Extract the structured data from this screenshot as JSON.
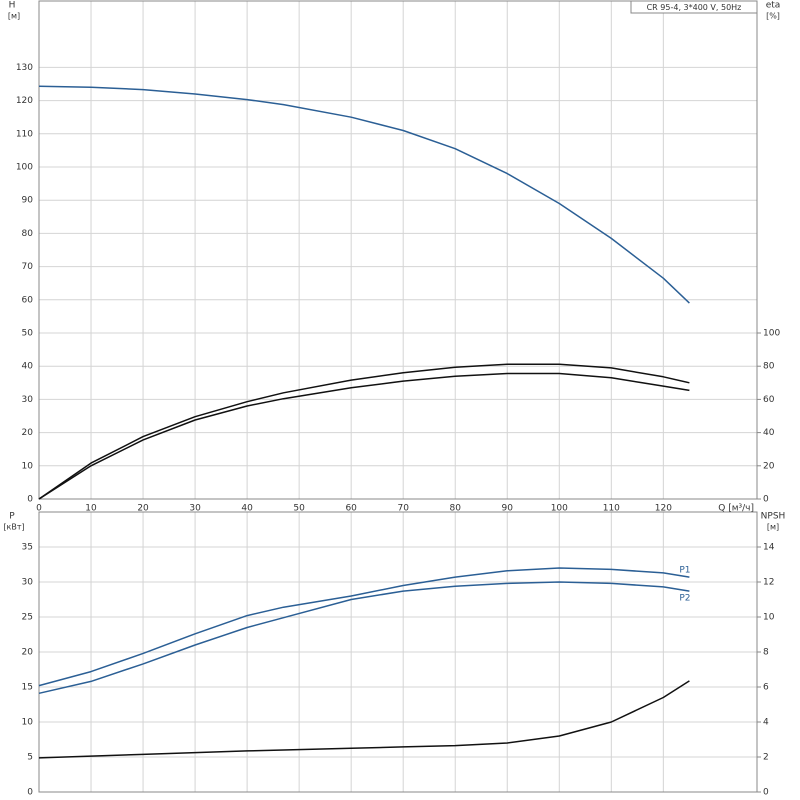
{
  "chart_data": [
    {
      "type": "line",
      "annotation": "CR 95-4, 3*400 V, 50Hz",
      "y_label": "H",
      "y_unit": "[м]",
      "y2_label": "eta",
      "y2_unit": "[%]",
      "x_label": "Q [м³/ч]",
      "xlim": [
        0,
        138
      ],
      "xticks": [
        0,
        10,
        20,
        30,
        40,
        50,
        60,
        70,
        80,
        90,
        100,
        110,
        120
      ],
      "ylim": [
        0,
        150
      ],
      "yticks": [
        0,
        10,
        20,
        30,
        40,
        50,
        60,
        70,
        80,
        90,
        100,
        110,
        120,
        130
      ],
      "y2lim": [
        0,
        300
      ],
      "y2ticks": [
        0,
        20,
        40,
        60,
        80,
        100
      ],
      "grid": true,
      "x": [
        0,
        10,
        20,
        30,
        40,
        47,
        60,
        70,
        80,
        90,
        100,
        110,
        120,
        125
      ],
      "series": [
        {
          "color": "#2b5f95",
          "values": [
            124.3,
            124,
            123.3,
            122,
            120.3,
            118.8,
            115,
            111,
            105.5,
            98,
            89,
            78.5,
            66.5,
            59
          ]
        },
        {
          "color": "#111111",
          "axis": "y2",
          "values": [
            0,
            21.6,
            37.6,
            49.6,
            58.6,
            64,
            71.6,
            76,
            79.4,
            81.2,
            81.2,
            79,
            73.6,
            70
          ]
        },
        {
          "color": "#111111",
          "axis": "y2",
          "values": [
            0,
            20,
            35.6,
            47.6,
            56,
            60.4,
            67,
            71,
            74,
            75.6,
            75.6,
            73,
            68,
            65.4
          ]
        }
      ]
    },
    {
      "type": "line",
      "y_label": "P",
      "y_unit": "[кВт]",
      "y2_label": "NPSH",
      "y2_unit": "[м]",
      "xlim": [
        0,
        138
      ],
      "ylim": [
        0,
        40
      ],
      "yticks": [
        0,
        5,
        10,
        15,
        20,
        25,
        30,
        35
      ],
      "y2lim": [
        0,
        16
      ],
      "y2ticks": [
        0,
        2,
        4,
        6,
        8,
        10,
        12,
        14
      ],
      "grid": true,
      "x": [
        0,
        10,
        20,
        30,
        40,
        47,
        60,
        70,
        80,
        90,
        100,
        110,
        120,
        125
      ],
      "series": [
        {
          "name": "P1",
          "color": "#2b5f95",
          "values": [
            15.2,
            17.2,
            19.8,
            22.6,
            25.2,
            26.4,
            28,
            29.5,
            30.7,
            31.6,
            32,
            31.8,
            31.3,
            30.7
          ]
        },
        {
          "name": "P2",
          "color": "#2b5f95",
          "values": [
            14.1,
            15.8,
            18.3,
            21,
            23.5,
            24.9,
            27.5,
            28.7,
            29.4,
            29.8,
            30,
            29.8,
            29.3,
            28.7
          ]
        },
        {
          "color": "#111111",
          "axis": "y2",
          "values": [
            1.95,
            2.05,
            2.15,
            2.25,
            2.35,
            2.4,
            2.5,
            2.58,
            2.65,
            2.8,
            3.2,
            4.0,
            5.4,
            6.35
          ]
        }
      ]
    }
  ]
}
